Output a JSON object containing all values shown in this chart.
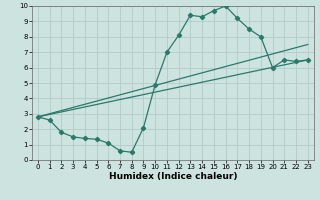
{
  "xlabel": "Humidex (Indice chaleur)",
  "ylabel": "",
  "xlim": [
    -0.5,
    23.5
  ],
  "ylim": [
    0,
    10
  ],
  "xticks": [
    0,
    1,
    2,
    3,
    4,
    5,
    6,
    7,
    8,
    9,
    10,
    11,
    12,
    13,
    14,
    15,
    16,
    17,
    18,
    19,
    20,
    21,
    22,
    23
  ],
  "yticks": [
    0,
    1,
    2,
    3,
    4,
    5,
    6,
    7,
    8,
    9,
    10
  ],
  "bg_color": "#cde3e0",
  "grid_color": "#b0ccca",
  "line_color": "#2a7a6a",
  "main_line_x": [
    0,
    1,
    2,
    3,
    4,
    5,
    6,
    7,
    8,
    9,
    10,
    11,
    12,
    13,
    14,
    15,
    16,
    17,
    18,
    19,
    20,
    21,
    22,
    23
  ],
  "main_line_y": [
    2.8,
    2.6,
    1.8,
    1.5,
    1.4,
    1.35,
    1.1,
    0.6,
    0.5,
    2.1,
    4.9,
    7.0,
    8.1,
    9.4,
    9.3,
    9.7,
    10.0,
    9.2,
    8.5,
    8.0,
    6.0,
    6.5,
    6.4,
    6.5
  ],
  "trend1_x": [
    0,
    23
  ],
  "trend1_y": [
    2.8,
    6.5
  ],
  "trend2_x": [
    0,
    23
  ],
  "trend2_y": [
    2.8,
    7.5
  ],
  "xlabel_fontsize": 6.5,
  "tick_fontsize": 5.0,
  "marker_size": 2.2,
  "line_width": 0.9
}
